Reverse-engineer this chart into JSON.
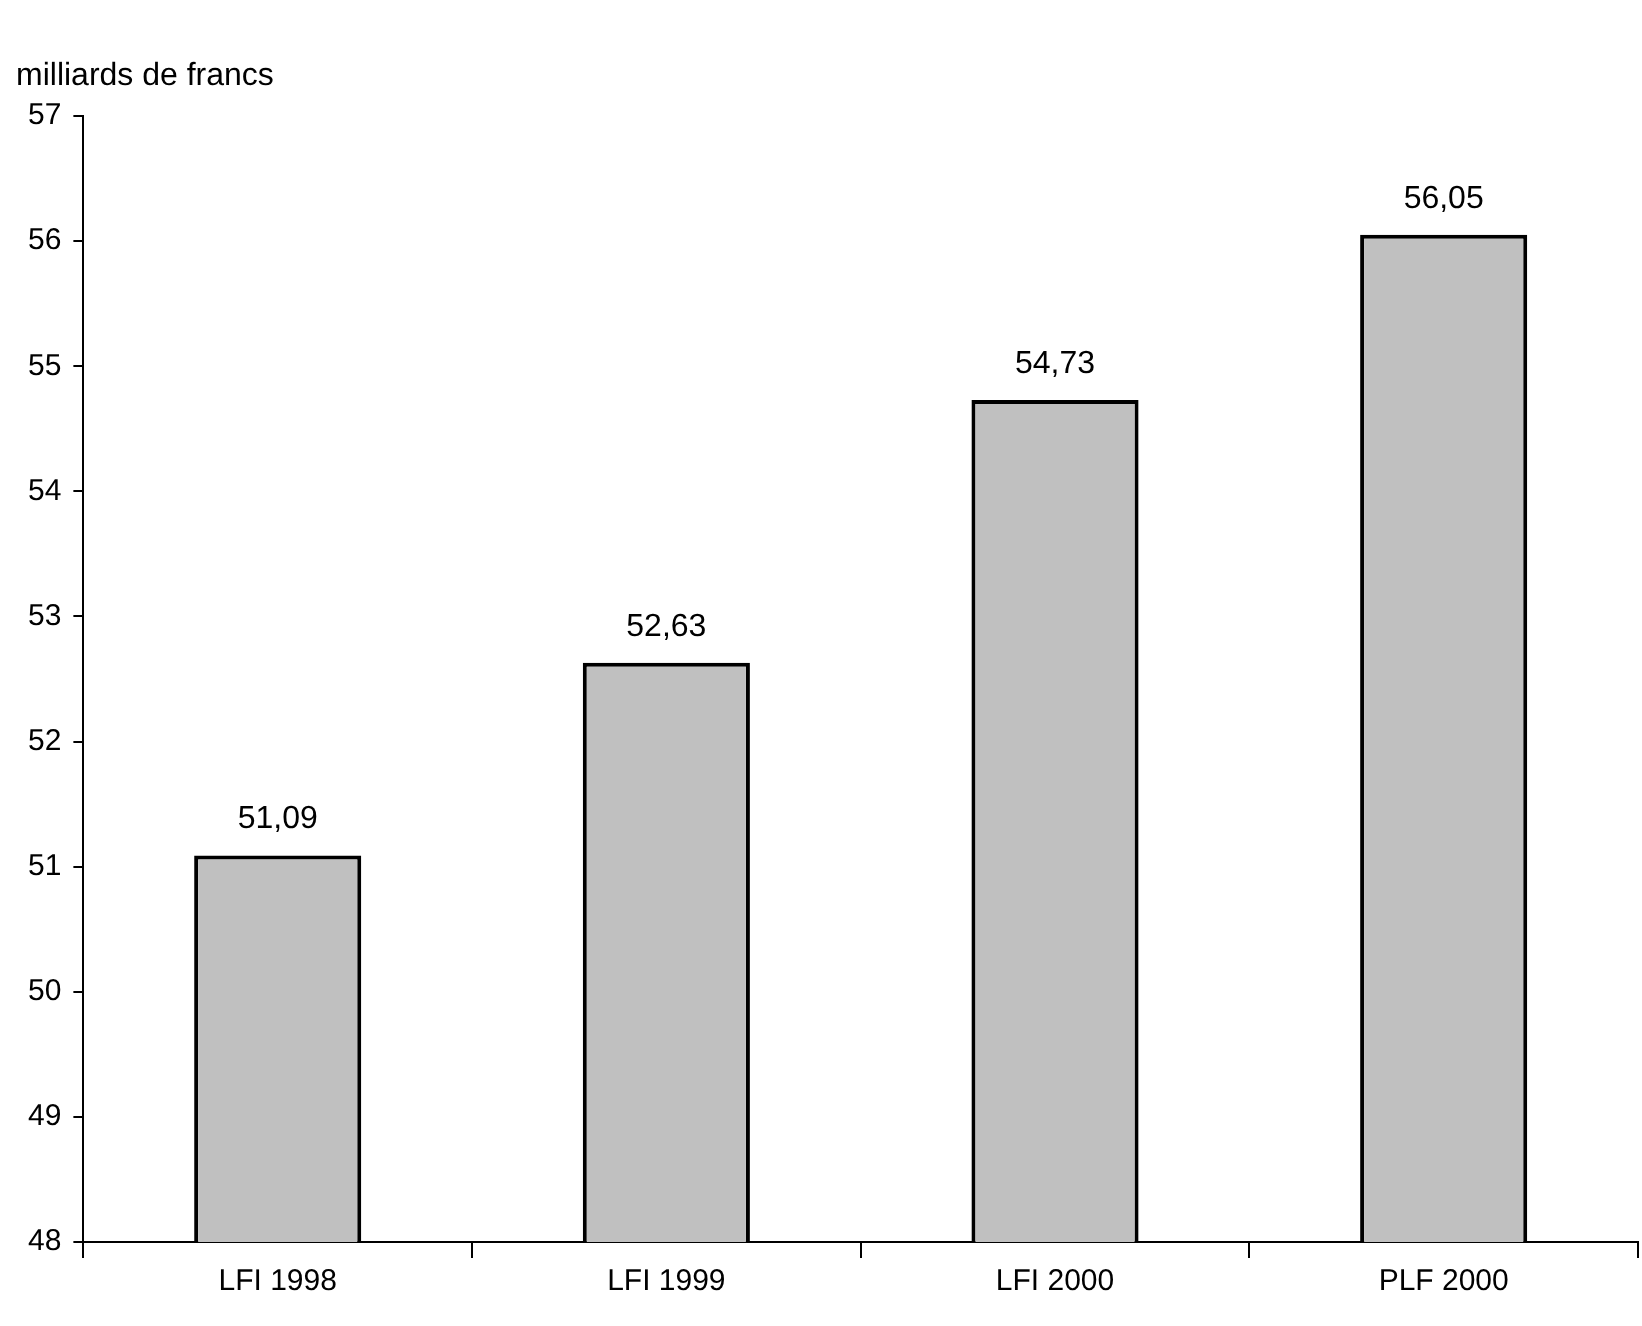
{
  "chart_data": {
    "type": "bar",
    "ylabel": "milliards de francs",
    "categories": [
      "LFI 1998",
      "LFI 1999",
      "LFI 2000",
      "PLF 2000"
    ],
    "values": [
      51.09,
      52.63,
      54.73,
      56.05
    ],
    "value_labels": [
      "51,09",
      "52,63",
      "54,73",
      "56,05"
    ],
    "color": "#c0c0c0",
    "ylim": [
      48,
      57
    ],
    "yticks": [
      48,
      49,
      50,
      51,
      52,
      53,
      54,
      55,
      56,
      57
    ],
    "grid": false,
    "legend": false
  }
}
